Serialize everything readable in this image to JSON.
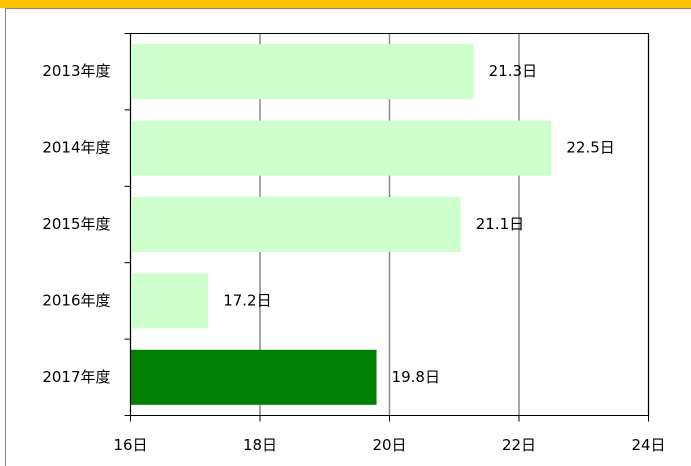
{
  "chart_data": {
    "type": "bar",
    "orientation": "horizontal",
    "categories": [
      "2013年度",
      "2014年度",
      "2015年度",
      "2016年度",
      "2017年度"
    ],
    "values": [
      21.3,
      22.5,
      21.1,
      17.2,
      19.8
    ],
    "value_labels": [
      "21.3日",
      "22.5日",
      "21.1日",
      "17.2日",
      "19.8日"
    ],
    "colors": [
      "#ccffcc",
      "#ccffcc",
      "#ccffcc",
      "#ccffcc",
      "#008000"
    ],
    "xlim": [
      16,
      24
    ],
    "xticks": [
      {
        "value": 16,
        "label": "16日"
      },
      {
        "value": 18,
        "label": "18日"
      },
      {
        "value": 20,
        "label": "20日"
      },
      {
        "value": 22,
        "label": "22日"
      },
      {
        "value": 24,
        "label": "24日"
      }
    ],
    "grid": true
  }
}
